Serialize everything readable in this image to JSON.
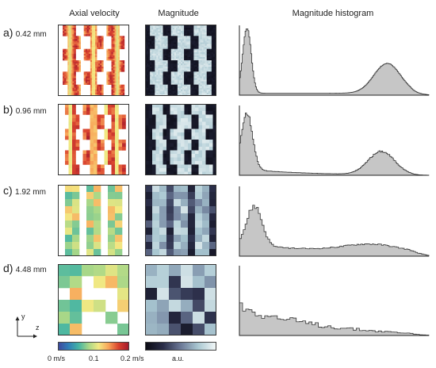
{
  "column_titles": {
    "axial": "Axial velocity",
    "magnitude": "Magnitude",
    "histogram": "Magnitude histogram"
  },
  "rows": [
    {
      "letter": "a)",
      "value": "0.42 mm",
      "resolution": 0.42
    },
    {
      "letter": "b)",
      "value": "0.96 mm",
      "resolution": 0.96
    },
    {
      "letter": "c)",
      "value": "1.92 mm",
      "resolution": 1.92
    },
    {
      "letter": "d)",
      "value": "4.48 mm",
      "resolution": 4.48
    }
  ],
  "axes_indicator": {
    "y": "y",
    "z": "z"
  },
  "colorbars": {
    "velocity": {
      "labels": [
        "0 m/s",
        "0.1",
        "0.2 m/s"
      ],
      "colors": [
        "#3d4a9e",
        "#2f7fb8",
        "#44b4a4",
        "#a7d788",
        "#f3e983",
        "#f8a559",
        "#d9432f",
        "#a51a2c"
      ]
    },
    "magnitude": {
      "label": "a.u.",
      "colors": [
        "#0b0b14",
        "#2a2d48",
        "#6b7896",
        "#aac8d2",
        "#f2f7f7"
      ]
    }
  },
  "histogram_style": {
    "fill": "#c6c6c6",
    "stroke": "#333333"
  }
}
